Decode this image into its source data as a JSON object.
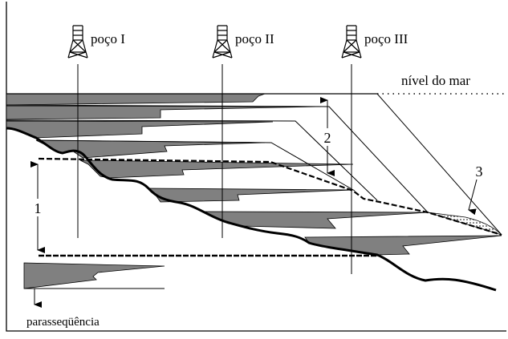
{
  "wells": [
    {
      "label": "poço I",
      "icon": "oil-derrick-icon"
    },
    {
      "label": "poço II",
      "icon": "oil-derrick-icon"
    },
    {
      "label": "poço III",
      "icon": "oil-derrick-icon"
    }
  ],
  "sea_level_label": "nível do mar",
  "annotations": {
    "one": "1",
    "two": "2",
    "three": "3"
  },
  "parasequence_label": "parasseqüência",
  "colors": {
    "wedge_fill": "#808080",
    "line": "#000000",
    "background": "#ffffff"
  }
}
